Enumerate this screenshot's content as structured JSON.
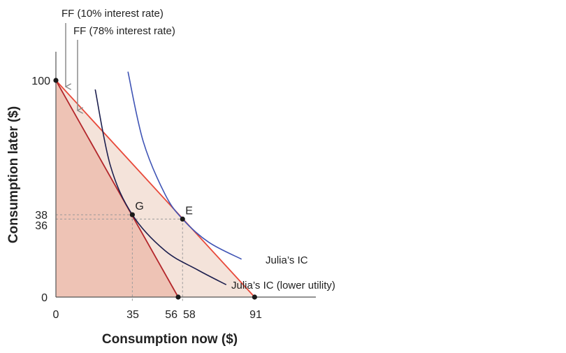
{
  "chart_data": {
    "type": "line",
    "xlabel": "Consumption now ($)",
    "ylabel": "Consumption later ($)",
    "xlim": [
      0,
      120
    ],
    "ylim": [
      0,
      110
    ],
    "x_ticks": [
      "0",
      "35",
      "56",
      "58",
      "91"
    ],
    "y_ticks": [
      "0",
      "36",
      "38",
      "100"
    ],
    "colors": {
      "ff_low_rate": "#e8493a",
      "ff_high_rate": "#b3262b",
      "fill_low_rate": "#f4e3da",
      "fill_high_rate": "#eec3b5",
      "ic_high": "#3f54b5",
      "ic_low": "#1c1f4e",
      "guide": "#9a9a9a"
    },
    "series": [
      {
        "name": "FF (10% interest rate)",
        "x": [
          0,
          91
        ],
        "y": [
          100,
          0
        ]
      },
      {
        "name": "FF (78% interest rate)",
        "x": [
          0,
          56
        ],
        "y": [
          100,
          0
        ]
      },
      {
        "name": "Julia’s IC",
        "x": [
          33,
          40,
          50,
          58,
          70,
          85
        ],
        "y": [
          104,
          71.8,
          47.4,
          36,
          25.3,
          17.5
        ]
      },
      {
        "name": "Julia’s IC (lower utility)",
        "x": [
          18,
          25,
          35,
          50,
          65,
          78
        ],
        "y": [
          95.8,
          60.5,
          38,
          21.4,
          12.5,
          5.7
        ]
      }
    ],
    "points": [
      {
        "label": "",
        "x": 0,
        "y": 100
      },
      {
        "label": "G",
        "x": 35,
        "y": 38
      },
      {
        "label": "E",
        "x": 58,
        "y": 36
      },
      {
        "label": "",
        "x": 56,
        "y": 0
      },
      {
        "label": "",
        "x": 91,
        "y": 0
      }
    ],
    "annotations": [
      {
        "text": "FF (10% interest rate)",
        "arrow_x": 4.5
      },
      {
        "text": "FF (78% interest rate)",
        "arrow_x": 10
      }
    ],
    "curve_labels": [
      "Julia’s IC",
      "Julia’s IC (lower utility)"
    ]
  }
}
